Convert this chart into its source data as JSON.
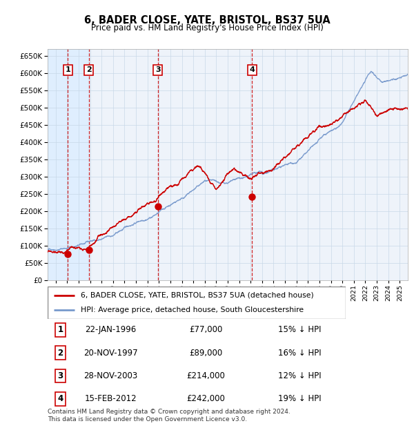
{
  "title": "6, BADER CLOSE, YATE, BRISTOL, BS37 5UA",
  "subtitle": "Price paid vs. HM Land Registry's House Price Index (HPI)",
  "footer": "Contains HM Land Registry data © Crown copyright and database right 2024.\nThis data is licensed under the Open Government Licence v3.0.",
  "legend_house": "6, BADER CLOSE, YATE, BRISTOL, BS37 5UA (detached house)",
  "legend_hpi": "HPI: Average price, detached house, South Gloucestershire",
  "house_color": "#cc0000",
  "hpi_color": "#7799cc",
  "grid_color": "#c8d8e8",
  "shade_color": "#ddeeff",
  "dashed_color": "#cc0000",
  "plot_bg": "#eef3fa",
  "transactions": [
    {
      "num": 1,
      "date": "22-JAN-1996",
      "price": 77000,
      "pct": "15%",
      "year": 1996.06
    },
    {
      "num": 2,
      "date": "20-NOV-1997",
      "price": 89000,
      "pct": "16%",
      "year": 1997.89
    },
    {
      "num": 3,
      "date": "28-NOV-2003",
      "price": 214000,
      "pct": "12%",
      "year": 2003.91
    },
    {
      "num": 4,
      "date": "15-FEB-2012",
      "price": 242000,
      "pct": "19%",
      "year": 2012.12
    }
  ],
  "xlim": [
    1994.3,
    2025.7
  ],
  "ylim": [
    0,
    670000
  ],
  "figsize": [
    6.0,
    6.2
  ],
  "dpi": 100
}
